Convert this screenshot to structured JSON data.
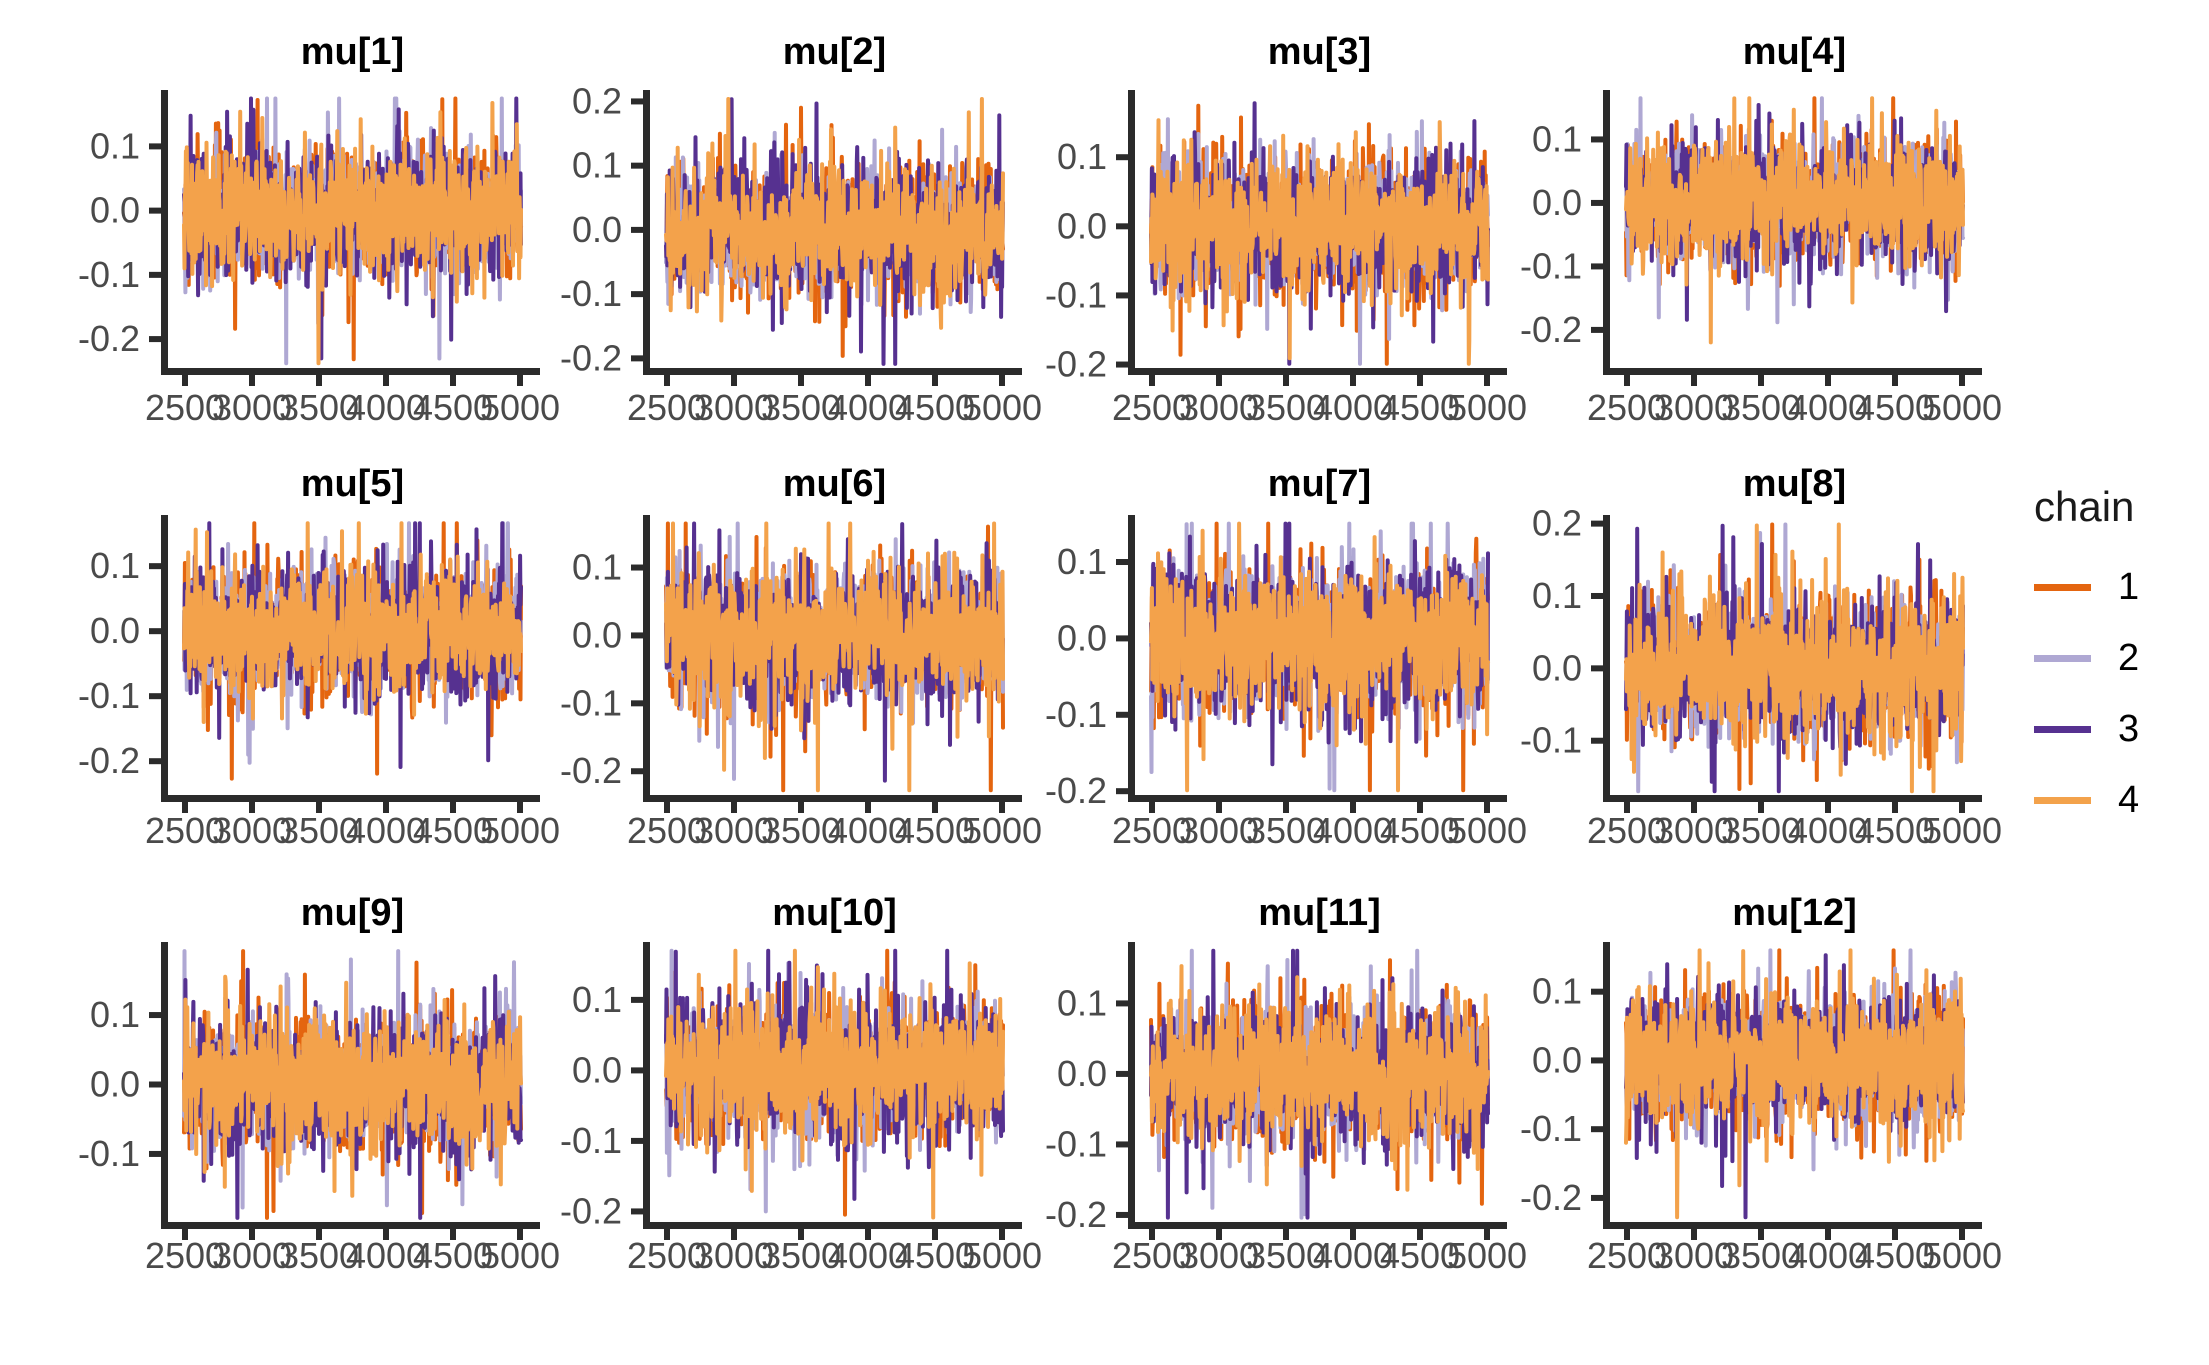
{
  "figure": {
    "kind": "MCMC trace plot grid (bayesplot style)",
    "background": "#ffffff",
    "axis_color": "#2b2b2b",
    "tick_label_color": "#4a4a4a",
    "title_color": "#000000"
  },
  "legend": {
    "title": "chain",
    "entries": [
      {
        "label": "1",
        "color": "#E4650F"
      },
      {
        "label": "2",
        "color": "#AFA8D3"
      },
      {
        "label": "3",
        "color": "#563190"
      },
      {
        "label": "4",
        "color": "#F3A24B"
      }
    ]
  },
  "chart_data": {
    "type": "line",
    "variant": "mcmc_trace_grid",
    "grid": {
      "rows": 3,
      "cols": 4
    },
    "x_range": [
      2500,
      5000
    ],
    "x_ticks": [
      2500,
      3000,
      3500,
      4000,
      4500,
      5000
    ],
    "legend_position": "right",
    "gridlines": false,
    "chains": [
      {
        "name": "1",
        "color": "#E4650F"
      },
      {
        "name": "2",
        "color": "#AFA8D3"
      },
      {
        "name": "3",
        "color": "#563190"
      },
      {
        "name": "4",
        "color": "#F3A24B"
      }
    ],
    "panels": [
      {
        "title": "mu[1]",
        "y_ticks": [
          0.1,
          0.0,
          -0.1,
          -0.2
        ],
        "ylim": [
          -0.245,
          0.18
        ],
        "seed": 1
      },
      {
        "title": "mu[2]",
        "y_ticks": [
          0.2,
          0.1,
          0.0,
          -0.1,
          -0.2
        ],
        "ylim": [
          -0.215,
          0.21
        ],
        "seed": 2
      },
      {
        "title": "mu[3]",
        "y_ticks": [
          0.1,
          0.0,
          -0.1,
          -0.2
        ],
        "ylim": [
          -0.205,
          0.19
        ],
        "seed": 3
      },
      {
        "title": "mu[4]",
        "y_ticks": [
          0.1,
          0.0,
          -0.1,
          -0.2
        ],
        "ylim": [
          -0.26,
          0.17
        ],
        "seed": 4
      },
      {
        "title": "mu[5]",
        "y_ticks": [
          0.1,
          0.0,
          -0.1,
          -0.2
        ],
        "ylim": [
          -0.252,
          0.171
        ],
        "seed": 5
      },
      {
        "title": "mu[6]",
        "y_ticks": [
          0.1,
          0.0,
          -0.1,
          -0.2
        ],
        "ylim": [
          -0.235,
          0.17
        ],
        "seed": 6
      },
      {
        "title": "mu[7]",
        "y_ticks": [
          0.1,
          0.0,
          -0.1,
          -0.2
        ],
        "ylim": [
          -0.205,
          0.155
        ],
        "seed": 7
      },
      {
        "title": "mu[8]",
        "y_ticks": [
          0.2,
          0.1,
          0.0,
          -0.1
        ],
        "ylim": [
          -0.175,
          0.205
        ],
        "seed": 8
      },
      {
        "title": "mu[9]",
        "y_ticks": [
          0.1,
          0.0,
          -0.1
        ],
        "ylim": [
          -0.198,
          0.198
        ],
        "seed": 9
      },
      {
        "title": "mu[10]",
        "y_ticks": [
          0.1,
          0.0,
          -0.1,
          -0.2
        ],
        "ylim": [
          -0.215,
          0.175
        ],
        "seed": 10
      },
      {
        "title": "mu[11]",
        "y_ticks": [
          0.1,
          0.0,
          -0.1,
          -0.2
        ],
        "ylim": [
          -0.21,
          0.18
        ],
        "seed": 11
      },
      {
        "title": "mu[12]",
        "y_ticks": [
          0.1,
          0.0,
          -0.1,
          -0.2
        ],
        "ylim": [
          -0.235,
          0.165
        ],
        "seed": 12
      }
    ],
    "series_model": {
      "description": "Each panel shows 4 stationary MCMC chains over iterations 2500-5000; values are mean-zero noise, dense core about +/-0.08 with occasional excursions to roughly +/-0.15 to +/-0.24. Traces are regenerated deterministically from per-panel seeds.",
      "n_points_per_chain": 720,
      "mean": 0.0,
      "sd": 0.046,
      "spike_prob": 0.055,
      "spike_gain_min": 1.5,
      "spike_gain_max": 2.6,
      "wobble_amp": 0.006
    }
  }
}
